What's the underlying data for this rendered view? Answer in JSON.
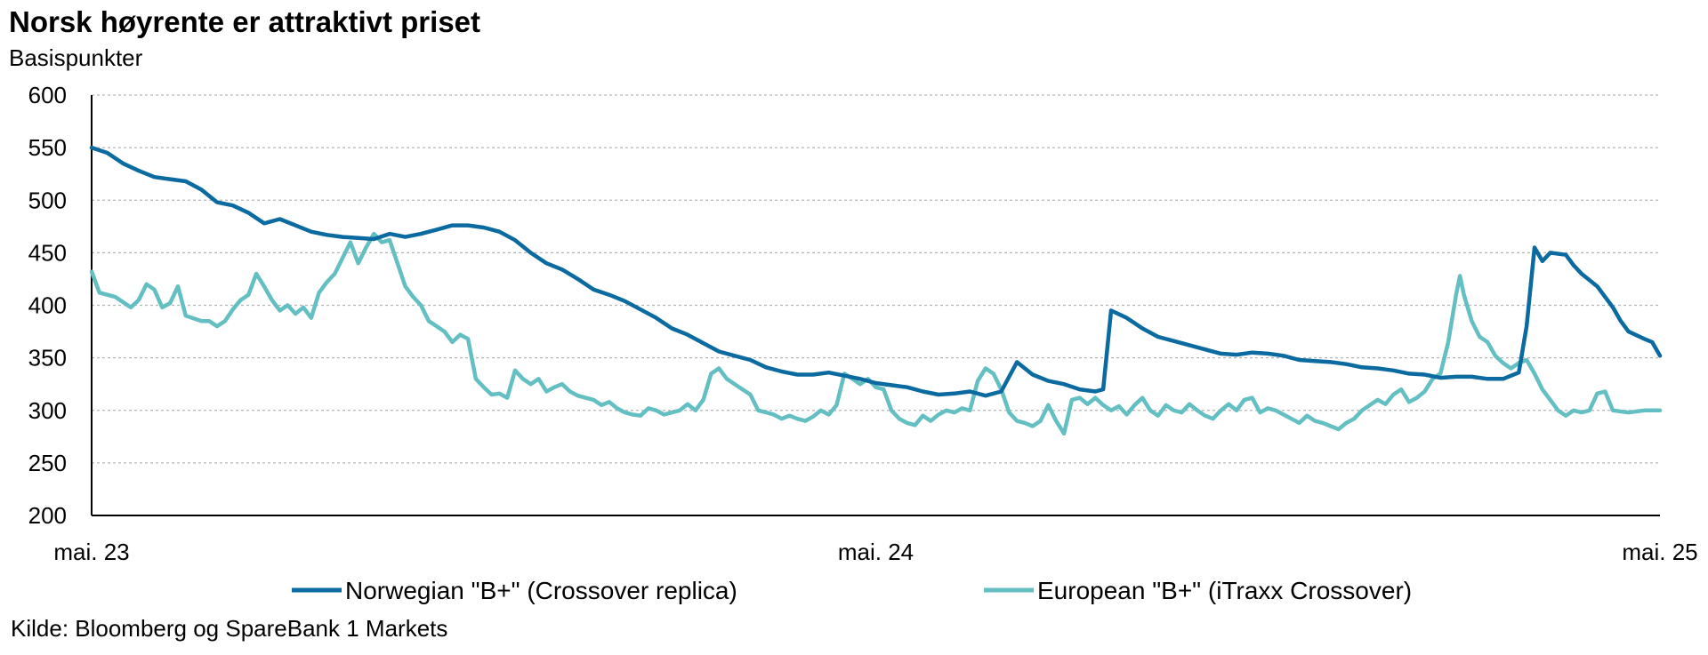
{
  "chart_data": {
    "type": "line",
    "title": "Norsk høyrente er attraktivt priset",
    "subtitle": "Basispunkter",
    "source": "Kilde: Bloomberg og SpareBank 1 Markets",
    "ylim": [
      200,
      600
    ],
    "y_ticks": [
      600,
      550,
      500,
      450,
      400,
      350,
      300,
      250,
      200
    ],
    "x_ticks": [
      "mai. 23",
      "mai. 24",
      "mai. 25"
    ],
    "x_tick_positions": [
      0,
      1,
      2
    ],
    "xlim": [
      0,
      2
    ],
    "grid": true,
    "legend_position": "bottom",
    "series": [
      {
        "name": "Norwegian \"B+\" (Crossover replica)",
        "color": "#0b6aa0",
        "points": [
          [
            0.0,
            550
          ],
          [
            0.02,
            545
          ],
          [
            0.04,
            535
          ],
          [
            0.06,
            528
          ],
          [
            0.08,
            522
          ],
          [
            0.1,
            520
          ],
          [
            0.12,
            518
          ],
          [
            0.14,
            510
          ],
          [
            0.16,
            498
          ],
          [
            0.18,
            495
          ],
          [
            0.2,
            488
          ],
          [
            0.22,
            478
          ],
          [
            0.24,
            482
          ],
          [
            0.26,
            476
          ],
          [
            0.28,
            470
          ],
          [
            0.3,
            467
          ],
          [
            0.32,
            465
          ],
          [
            0.34,
            464
          ],
          [
            0.36,
            463
          ],
          [
            0.38,
            468
          ],
          [
            0.4,
            465
          ],
          [
            0.42,
            468
          ],
          [
            0.44,
            472
          ],
          [
            0.46,
            476
          ],
          [
            0.48,
            476
          ],
          [
            0.5,
            474
          ],
          [
            0.52,
            470
          ],
          [
            0.54,
            462
          ],
          [
            0.56,
            450
          ],
          [
            0.58,
            440
          ],
          [
            0.6,
            434
          ],
          [
            0.62,
            425
          ],
          [
            0.64,
            415
          ],
          [
            0.66,
            410
          ],
          [
            0.68,
            404
          ],
          [
            0.7,
            396
          ],
          [
            0.72,
            388
          ],
          [
            0.74,
            378
          ],
          [
            0.76,
            372
          ],
          [
            0.78,
            364
          ],
          [
            0.8,
            356
          ],
          [
            0.82,
            352
          ],
          [
            0.84,
            348
          ],
          [
            0.86,
            341
          ],
          [
            0.88,
            337
          ],
          [
            0.9,
            334
          ],
          [
            0.92,
            334
          ],
          [
            0.94,
            336
          ],
          [
            0.96,
            333
          ],
          [
            0.98,
            330
          ],
          [
            1.0,
            326
          ],
          [
            1.02,
            324
          ],
          [
            1.04,
            322
          ],
          [
            1.06,
            318
          ],
          [
            1.08,
            315
          ],
          [
            1.1,
            316
          ],
          [
            1.12,
            318
          ],
          [
            1.14,
            314
          ],
          [
            1.16,
            318
          ],
          [
            1.18,
            346
          ],
          [
            1.2,
            334
          ],
          [
            1.22,
            328
          ],
          [
            1.24,
            325
          ],
          [
            1.26,
            320
          ],
          [
            1.28,
            318
          ],
          [
            1.29,
            320
          ],
          [
            1.3,
            395
          ],
          [
            1.32,
            388
          ],
          [
            1.34,
            378
          ],
          [
            1.36,
            370
          ],
          [
            1.38,
            366
          ],
          [
            1.4,
            362
          ],
          [
            1.42,
            358
          ],
          [
            1.44,
            354
          ],
          [
            1.46,
            353
          ],
          [
            1.48,
            355
          ],
          [
            1.5,
            354
          ],
          [
            1.52,
            352
          ],
          [
            1.54,
            348
          ],
          [
            1.56,
            347
          ],
          [
            1.58,
            346
          ],
          [
            1.6,
            344
          ],
          [
            1.62,
            341
          ],
          [
            1.64,
            340
          ],
          [
            1.66,
            338
          ],
          [
            1.68,
            335
          ],
          [
            1.7,
            334
          ],
          [
            1.72,
            331
          ],
          [
            1.74,
            332
          ],
          [
            1.76,
            332
          ],
          [
            1.78,
            330
          ],
          [
            1.8,
            330
          ],
          [
            1.82,
            336
          ],
          [
            1.83,
            380
          ],
          [
            1.84,
            455
          ],
          [
            1.85,
            442
          ],
          [
            1.86,
            450
          ],
          [
            1.88,
            448
          ],
          [
            1.89,
            438
          ],
          [
            1.9,
            430
          ],
          [
            1.92,
            418
          ],
          [
            1.94,
            398
          ],
          [
            1.95,
            385
          ],
          [
            1.96,
            375
          ],
          [
            1.98,
            368
          ],
          [
            1.99,
            365
          ],
          [
            2.0,
            352
          ]
        ]
      },
      {
        "name": "European \"B+\" (iTraxx Crossover)",
        "color": "#64bfc2",
        "points": [
          [
            0.0,
            432
          ],
          [
            0.01,
            412
          ],
          [
            0.03,
            408
          ],
          [
            0.05,
            398
          ],
          [
            0.06,
            405
          ],
          [
            0.07,
            420
          ],
          [
            0.08,
            415
          ],
          [
            0.09,
            398
          ],
          [
            0.1,
            402
          ],
          [
            0.11,
            418
          ],
          [
            0.12,
            390
          ],
          [
            0.14,
            385
          ],
          [
            0.15,
            385
          ],
          [
            0.16,
            380
          ],
          [
            0.17,
            385
          ],
          [
            0.18,
            396
          ],
          [
            0.19,
            405
          ],
          [
            0.2,
            410
          ],
          [
            0.21,
            430
          ],
          [
            0.22,
            418
          ],
          [
            0.23,
            405
          ],
          [
            0.24,
            395
          ],
          [
            0.25,
            400
          ],
          [
            0.26,
            392
          ],
          [
            0.27,
            398
          ],
          [
            0.28,
            388
          ],
          [
            0.29,
            412
          ],
          [
            0.3,
            422
          ],
          [
            0.31,
            430
          ],
          [
            0.32,
            445
          ],
          [
            0.33,
            460
          ],
          [
            0.34,
            440
          ],
          [
            0.35,
            455
          ],
          [
            0.36,
            468
          ],
          [
            0.37,
            460
          ],
          [
            0.38,
            462
          ],
          [
            0.39,
            440
          ],
          [
            0.4,
            418
          ],
          [
            0.41,
            408
          ],
          [
            0.42,
            400
          ],
          [
            0.43,
            385
          ],
          [
            0.44,
            380
          ],
          [
            0.45,
            375
          ],
          [
            0.46,
            365
          ],
          [
            0.47,
            372
          ],
          [
            0.48,
            368
          ],
          [
            0.49,
            330
          ],
          [
            0.5,
            322
          ],
          [
            0.51,
            315
          ],
          [
            0.52,
            316
          ],
          [
            0.53,
            312
          ],
          [
            0.54,
            338
          ],
          [
            0.55,
            330
          ],
          [
            0.56,
            325
          ],
          [
            0.57,
            330
          ],
          [
            0.58,
            318
          ],
          [
            0.59,
            322
          ],
          [
            0.6,
            325
          ],
          [
            0.61,
            318
          ],
          [
            0.62,
            314
          ],
          [
            0.63,
            312
          ],
          [
            0.64,
            310
          ],
          [
            0.65,
            305
          ],
          [
            0.66,
            308
          ],
          [
            0.67,
            302
          ],
          [
            0.68,
            298
          ],
          [
            0.69,
            296
          ],
          [
            0.7,
            295
          ],
          [
            0.71,
            302
          ],
          [
            0.72,
            300
          ],
          [
            0.73,
            296
          ],
          [
            0.74,
            298
          ],
          [
            0.75,
            300
          ],
          [
            0.76,
            306
          ],
          [
            0.77,
            300
          ],
          [
            0.78,
            310
          ],
          [
            0.79,
            335
          ],
          [
            0.8,
            340
          ],
          [
            0.81,
            330
          ],
          [
            0.82,
            325
          ],
          [
            0.83,
            320
          ],
          [
            0.84,
            315
          ],
          [
            0.85,
            300
          ],
          [
            0.86,
            298
          ],
          [
            0.87,
            296
          ],
          [
            0.88,
            292
          ],
          [
            0.89,
            295
          ],
          [
            0.9,
            292
          ],
          [
            0.91,
            290
          ],
          [
            0.92,
            294
          ],
          [
            0.93,
            300
          ],
          [
            0.94,
            296
          ],
          [
            0.95,
            305
          ],
          [
            0.96,
            335
          ],
          [
            0.97,
            330
          ],
          [
            0.98,
            325
          ],
          [
            0.99,
            330
          ],
          [
            1.0,
            322
          ],
          [
            1.01,
            320
          ],
          [
            1.02,
            300
          ],
          [
            1.03,
            292
          ],
          [
            1.04,
            288
          ],
          [
            1.05,
            286
          ],
          [
            1.06,
            295
          ],
          [
            1.07,
            290
          ],
          [
            1.08,
            296
          ],
          [
            1.09,
            300
          ],
          [
            1.1,
            298
          ],
          [
            1.11,
            302
          ],
          [
            1.12,
            300
          ],
          [
            1.13,
            328
          ],
          [
            1.14,
            340
          ],
          [
            1.15,
            335
          ],
          [
            1.16,
            320
          ],
          [
            1.17,
            298
          ],
          [
            1.18,
            290
          ],
          [
            1.19,
            288
          ],
          [
            1.2,
            285
          ],
          [
            1.21,
            290
          ],
          [
            1.22,
            305
          ],
          [
            1.23,
            290
          ],
          [
            1.24,
            278
          ],
          [
            1.25,
            310
          ],
          [
            1.26,
            312
          ],
          [
            1.27,
            306
          ],
          [
            1.28,
            312
          ],
          [
            1.29,
            305
          ],
          [
            1.3,
            300
          ],
          [
            1.31,
            304
          ],
          [
            1.32,
            296
          ],
          [
            1.33,
            305
          ],
          [
            1.34,
            312
          ],
          [
            1.35,
            300
          ],
          [
            1.36,
            295
          ],
          [
            1.37,
            305
          ],
          [
            1.38,
            300
          ],
          [
            1.39,
            298
          ],
          [
            1.4,
            306
          ],
          [
            1.41,
            300
          ],
          [
            1.42,
            295
          ],
          [
            1.43,
            292
          ],
          [
            1.44,
            300
          ],
          [
            1.45,
            306
          ],
          [
            1.46,
            300
          ],
          [
            1.47,
            310
          ],
          [
            1.48,
            312
          ],
          [
            1.49,
            298
          ],
          [
            1.5,
            302
          ],
          [
            1.51,
            300
          ],
          [
            1.52,
            296
          ],
          [
            1.53,
            292
          ],
          [
            1.54,
            288
          ],
          [
            1.55,
            295
          ],
          [
            1.56,
            290
          ],
          [
            1.57,
            288
          ],
          [
            1.58,
            285
          ],
          [
            1.59,
            282
          ],
          [
            1.6,
            288
          ],
          [
            1.61,
            292
          ],
          [
            1.62,
            300
          ],
          [
            1.63,
            305
          ],
          [
            1.64,
            310
          ],
          [
            1.65,
            306
          ],
          [
            1.66,
            315
          ],
          [
            1.67,
            320
          ],
          [
            1.68,
            308
          ],
          [
            1.69,
            312
          ],
          [
            1.7,
            318
          ],
          [
            1.71,
            330
          ],
          [
            1.72,
            335
          ],
          [
            1.73,
            365
          ],
          [
            1.74,
            410
          ],
          [
            1.745,
            428
          ],
          [
            1.75,
            410
          ],
          [
            1.76,
            385
          ],
          [
            1.77,
            370
          ],
          [
            1.78,
            365
          ],
          [
            1.79,
            352
          ],
          [
            1.8,
            345
          ],
          [
            1.81,
            340
          ],
          [
            1.82,
            345
          ],
          [
            1.83,
            348
          ],
          [
            1.84,
            335
          ],
          [
            1.85,
            320
          ],
          [
            1.86,
            310
          ],
          [
            1.87,
            300
          ],
          [
            1.88,
            295
          ],
          [
            1.89,
            300
          ],
          [
            1.9,
            298
          ],
          [
            1.91,
            300
          ],
          [
            1.92,
            316
          ],
          [
            1.93,
            318
          ],
          [
            1.94,
            300
          ],
          [
            1.96,
            298
          ],
          [
            1.98,
            300
          ],
          [
            2.0,
            300
          ]
        ]
      }
    ]
  }
}
